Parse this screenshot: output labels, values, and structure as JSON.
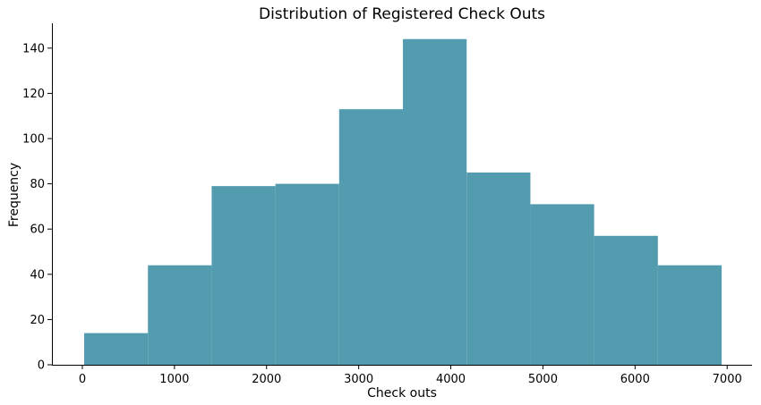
{
  "chart_data": {
    "type": "histogram",
    "title": "Distribution of Registered Check Outs",
    "xlabel": "Check outs",
    "ylabel": "Frequency",
    "xlim": [
      -330,
      7270
    ],
    "ylim": [
      0,
      151
    ],
    "xticks": [
      0,
      1000,
      2000,
      3000,
      4000,
      5000,
      6000,
      7000
    ],
    "yticks": [
      0,
      20,
      40,
      60,
      80,
      100,
      120,
      140
    ],
    "bin_edges": [
      20,
      712,
      1404,
      2096,
      2788,
      3480,
      4172,
      4864,
      5556,
      6248,
      6940
    ],
    "counts": [
      14,
      44,
      79,
      80,
      113,
      144,
      85,
      71,
      57,
      44
    ],
    "bar_color": "#539caf",
    "grid": false,
    "legend": "none"
  }
}
